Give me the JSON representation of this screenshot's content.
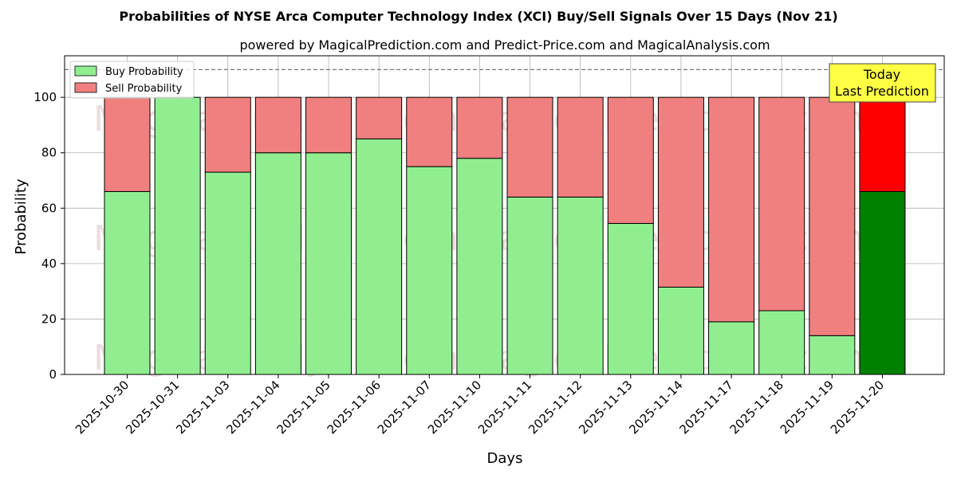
{
  "chart_data": {
    "type": "bar",
    "stacked": true,
    "title": "Probabilities of NYSE Arca Computer Technology Index (XCI) Buy/Sell Signals Over 15 Days (Nov 21)",
    "subtitle": "powered by MagicalPrediction.com and Predict-Price.com and MagicalAnalysis.com",
    "xlabel": "Days",
    "ylabel": "Probability",
    "ylim": [
      0,
      115
    ],
    "yticks": [
      0,
      20,
      40,
      60,
      80,
      100
    ],
    "reference_line": 110,
    "grid": true,
    "legend_position": "top-left",
    "categories": [
      "2025-10-30",
      "2025-10-31",
      "2025-11-03",
      "2025-11-04",
      "2025-11-05",
      "2025-11-06",
      "2025-11-07",
      "2025-11-10",
      "2025-11-11",
      "2025-11-12",
      "2025-11-13",
      "2025-11-14",
      "2025-11-17",
      "2025-11-18",
      "2025-11-19",
      "2025-11-20"
    ],
    "series": [
      {
        "name": "Buy Probability",
        "values": [
          66,
          100,
          73,
          80,
          80,
          85,
          75,
          78,
          64,
          64,
          54.5,
          31.5,
          19,
          23,
          14,
          66
        ]
      },
      {
        "name": "Sell Probability",
        "values": [
          34,
          0,
          27,
          20,
          20,
          15,
          25,
          22,
          36,
          36,
          45.5,
          68.5,
          81,
          77,
          86,
          34
        ]
      }
    ],
    "colors": {
      "buy": "#90ee90",
      "sell": "#f08080",
      "buy_highlight": "#008000",
      "sell_highlight": "#ff0000",
      "annotation_bg": "#ffff44"
    },
    "annotation": {
      "line1": "Today",
      "line2": "Last Prediction"
    },
    "watermarks": [
      "MagicalAnalysis.com",
      "MagicalPrediction.com"
    ]
  }
}
